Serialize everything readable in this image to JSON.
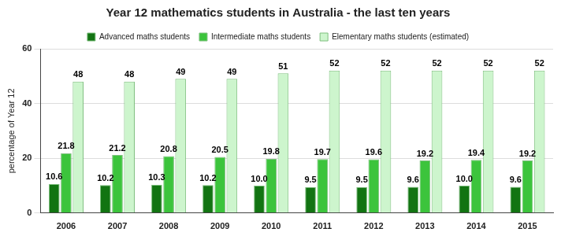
{
  "chart_data": {
    "type": "bar",
    "title": "Year 12 mathematics students in Australia - the last ten years",
    "y_label": "percentage of Year 12",
    "categories": [
      "2006",
      "2007",
      "2008",
      "2009",
      "2010",
      "2011",
      "2012",
      "2013",
      "2014",
      "2015"
    ],
    "series": [
      {
        "name": "Advanced maths students",
        "color": "#127412",
        "values": [
          10.6,
          10.2,
          10.3,
          10.2,
          10.0,
          9.5,
          9.5,
          9.6,
          10.0,
          9.6
        ],
        "value_labels": [
          "10.6",
          "10.2",
          "10.3",
          "10.2",
          "10.0",
          "9.5",
          "9.5",
          "9.6",
          "10.0",
          "9.6"
        ]
      },
      {
        "name": "Intermediate maths students",
        "color": "#3cc43c",
        "values": [
          21.8,
          21.2,
          20.8,
          20.5,
          19.8,
          19.7,
          19.6,
          19.2,
          19.4,
          19.2
        ],
        "value_labels": [
          "21.8",
          "21.2",
          "20.8",
          "20.5",
          "19.8",
          "19.7",
          "19.6",
          "19.2",
          "19.4",
          "19.2"
        ]
      },
      {
        "name": "Elementary maths students (estimated)",
        "color": "#cdf5cd",
        "values": [
          48,
          48,
          49,
          49,
          51,
          52,
          52,
          52,
          52,
          52
        ]
      }
    ],
    "ylim": [
      0,
      60
    ],
    "yticks": [
      0,
      20,
      40,
      60
    ],
    "grid": true,
    "legend": "top",
    "data_labels": true
  }
}
